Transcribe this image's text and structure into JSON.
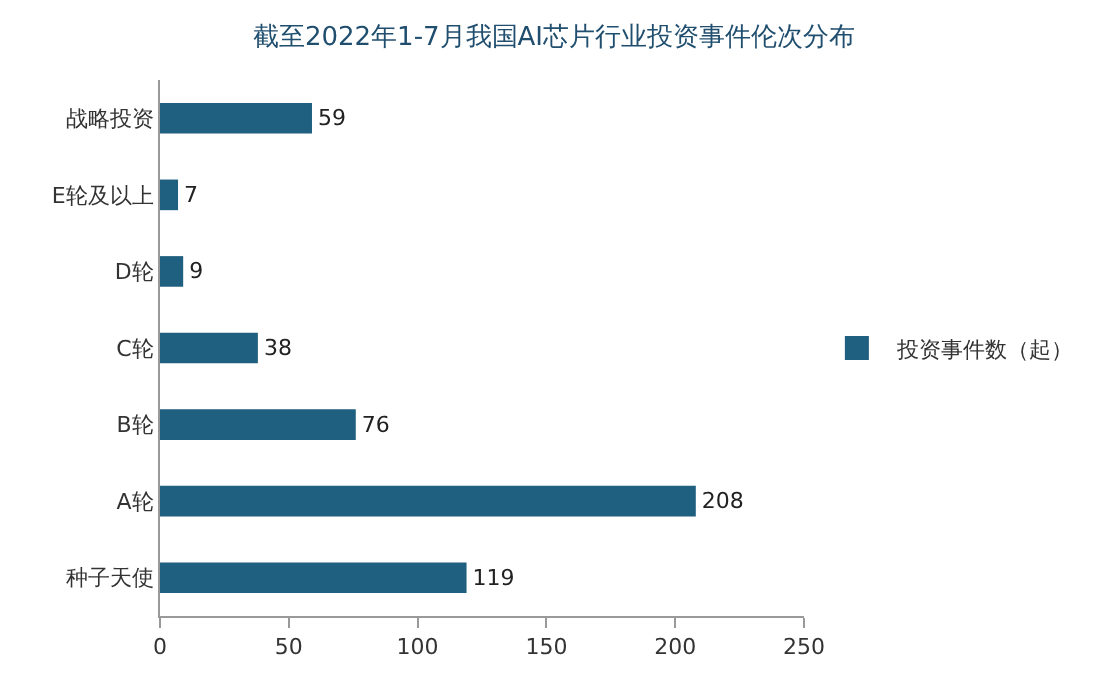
{
  "chart_data": {
    "type": "bar",
    "orientation": "horizontal",
    "title": "截至2022年1-7月我国AI芯片行业投资事件伦次分布",
    "categories": [
      "战略投资",
      "E轮及以上",
      "D轮",
      "C轮",
      "B轮",
      "A轮",
      "种子天使"
    ],
    "series": [
      {
        "name": "投资事件数（起）",
        "color": "#1f5f7f",
        "values": [
          59,
          7,
          9,
          38,
          76,
          208,
          119
        ]
      }
    ],
    "xlim": [
      0,
      250
    ],
    "xticks": [
      0,
      50,
      100,
      150,
      200,
      250
    ],
    "grid": false,
    "legend": "right",
    "data_labels": true
  }
}
